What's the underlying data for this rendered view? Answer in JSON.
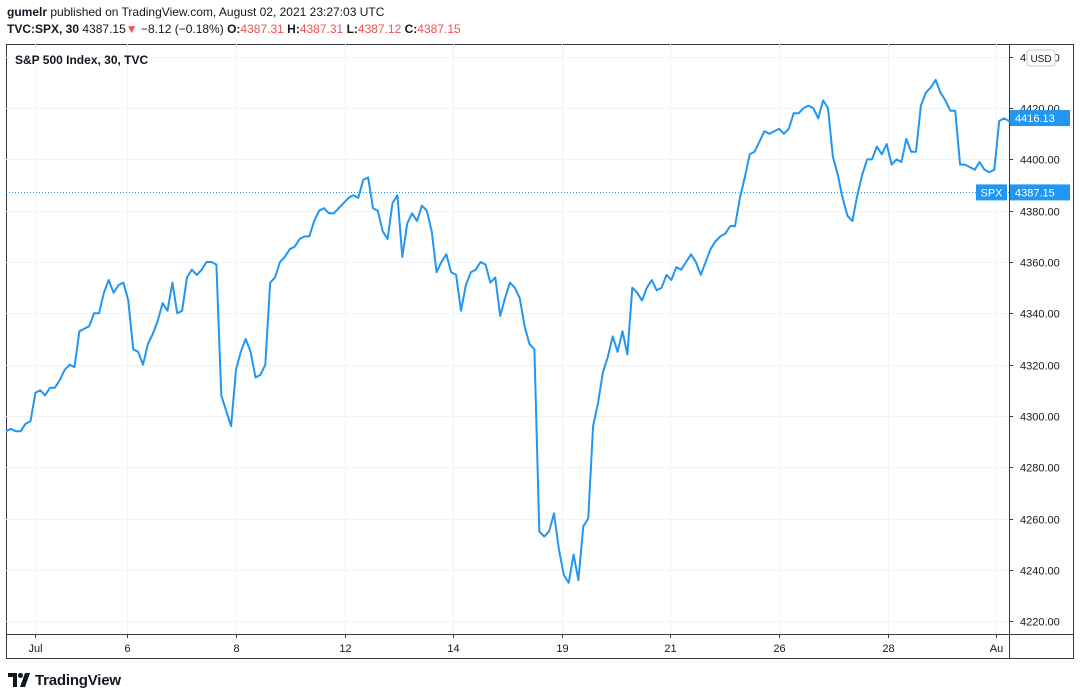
{
  "header": {
    "user": "gumelr",
    "published_text": "published on TradingView.com, August 02, 2021 23:27:03 UTC",
    "symbol": "TVC:SPX, 30",
    "last": "4387.15",
    "change": "−8.12 (−0.18%)",
    "o_label": "O:",
    "o_value": "4387.31",
    "h_label": "H:",
    "h_value": "4387.31",
    "l_label": "L:",
    "l_value": "4387.12",
    "c_label": "C:",
    "c_value": "4387.15"
  },
  "footer": {
    "logo_text": "TradingView"
  },
  "colors": {
    "line": "#2196f3",
    "down": "#ef5350",
    "grid": "#f0f3fa",
    "axis": "#363a45"
  },
  "chart_data": {
    "type": "line",
    "title": "S&P 500 Index, 30, TVC",
    "currency": "USD",
    "ylim": [
      4215,
      4445
    ],
    "y_ticks": [
      4220,
      4240,
      4260,
      4280,
      4300,
      4320,
      4340,
      4360,
      4380,
      4400,
      4420,
      4440
    ],
    "y_tick_labels": [
      "4220.00",
      "4240.00",
      "4260.00",
      "4280.00",
      "4300.00",
      "4320.00",
      "4340.00",
      "4360.00",
      "4380.00",
      "4400.00",
      "4420.00",
      "4440.00"
    ],
    "x_tick_labels": [
      "Jul",
      "6",
      "8",
      "12",
      "14",
      "19",
      "21",
      "26",
      "28",
      "Au"
    ],
    "x_tick_positions": [
      2.5,
      13.5,
      26.5,
      39.5,
      52.5,
      65.5,
      78.5,
      91.5,
      104.5,
      117.5
    ],
    "x_range": [
      -1,
      119
    ],
    "series_label": "SPX",
    "last_value": 4387.15,
    "last_value_label": "4387.15",
    "current_value": 4416.13,
    "current_value_label": "4416.13",
    "series": [
      {
        "values": [
          4294,
          4295,
          4294,
          4294,
          4297,
          4298,
          4309,
          4310,
          4308,
          4311,
          4311,
          4314,
          4318,
          4320,
          4319,
          4333,
          4334,
          4335,
          4340,
          4340,
          4348,
          4353,
          4348,
          4351,
          4352,
          4345,
          4326,
          4325,
          4320,
          4328,
          4332,
          4337,
          4344,
          4341,
          4352,
          4340,
          4341,
          4354,
          4357,
          4355,
          4357,
          4360,
          4360,
          4359,
          4308,
          4302,
          4296,
          4318,
          4325,
          4330,
          4325,
          4315,
          4316,
          4320,
          4352,
          4354,
          4360,
          4362,
          4365,
          4366,
          4369,
          4370,
          4370,
          4376,
          4380,
          4381,
          4379,
          4379,
          4381,
          4383,
          4385,
          4386,
          4385,
          4392,
          4393,
          4381,
          4380,
          4372,
          4369,
          4383,
          4386,
          4362,
          4375,
          4379,
          4376,
          4382,
          4380,
          4372,
          4356,
          4360,
          4363,
          4356,
          4355,
          4341,
          4351,
          4356,
          4357,
          4360,
          4359,
          4352,
          4354,
          4339,
          4346,
          4352,
          4350,
          4346,
          4335,
          4328,
          4326,
          4255,
          4253,
          4255,
          4262,
          4248,
          4238,
          4235,
          4246,
          4236,
          4257,
          4260,
          4296,
          4305,
          4317,
          4323,
          4331,
          4325,
          4333,
          4324,
          4350,
          4348,
          4345,
          4350,
          4353,
          4349,
          4350,
          4355,
          4353,
          4358,
          4357,
          4360,
          4363,
          4360,
          4355,
          4360,
          4365,
          4368,
          4370,
          4371,
          4374,
          4374,
          4385,
          4393,
          4402,
          4403,
          4407,
          4411,
          4410,
          4411,
          4412,
          4410,
          4412,
          4418,
          4418,
          4420,
          4421,
          4420,
          4416,
          4423,
          4420,
          4401,
          4394,
          4385,
          4378,
          4376,
          4386,
          4394,
          4400,
          4400,
          4405,
          4402,
          4406,
          4398,
          4400,
          4399,
          4408,
          4403,
          4403,
          4421,
          4426,
          4428,
          4431,
          4426,
          4423,
          4419,
          4419,
          4398,
          4398,
          4397,
          4396,
          4399,
          4396,
          4395,
          4396,
          4415,
          4416,
          4415
        ]
      }
    ]
  }
}
